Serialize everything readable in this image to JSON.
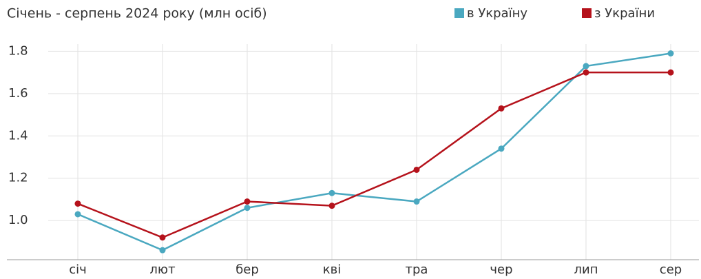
{
  "chart_data": {
    "type": "line",
    "title": "Січень - серпень 2024 року (млн осіб)",
    "categories": [
      "січ",
      "лют",
      "бер",
      "кві",
      "тра",
      "чер",
      "лип",
      "сер"
    ],
    "series": [
      {
        "name": "в Україну",
        "color": "#4aa8c0",
        "values": [
          1.03,
          0.86,
          1.06,
          1.13,
          1.09,
          1.34,
          1.73,
          1.79
        ]
      },
      {
        "name": "з України",
        "color": "#b5121b",
        "values": [
          1.08,
          0.92,
          1.09,
          1.07,
          1.24,
          1.53,
          1.7,
          1.7
        ]
      }
    ],
    "ylim": [
      0.815,
      1.86
    ],
    "yticks": [
      {
        "value": 1.0,
        "label": "1.0"
      },
      1.2,
      1.4,
      1.6,
      1.8
    ],
    "grid": true,
    "legend": "top-right"
  }
}
